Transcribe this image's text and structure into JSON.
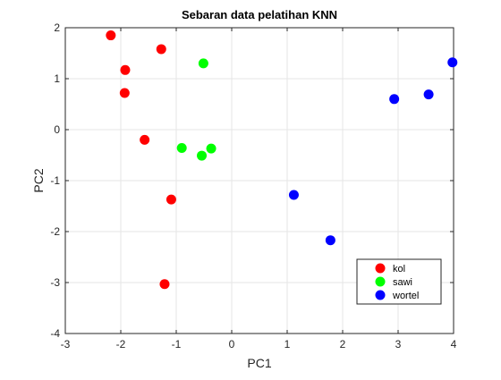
{
  "chart_data": {
    "type": "scatter",
    "title": "Sebaran data pelatihan KNN",
    "xlabel": "PC1",
    "ylabel": "PC2",
    "xlim": [
      -3,
      4
    ],
    "ylim": [
      -4,
      2
    ],
    "xticks": [
      -3,
      -2,
      -1,
      0,
      1,
      2,
      3,
      4
    ],
    "yticks": [
      -4,
      -3,
      -2,
      -1,
      0,
      1,
      2
    ],
    "grid": true,
    "legend_position": "bottom-right",
    "series": [
      {
        "name": "kol",
        "color": "#ff0000",
        "points": [
          [
            -2.18,
            1.85
          ],
          [
            -1.27,
            1.58
          ],
          [
            -1.92,
            1.17
          ],
          [
            -1.93,
            0.72
          ],
          [
            -1.57,
            -0.2
          ],
          [
            -1.09,
            -1.37
          ],
          [
            -1.21,
            -3.03
          ]
        ]
      },
      {
        "name": "sawi",
        "color": "#00ff00",
        "points": [
          [
            -0.51,
            1.3
          ],
          [
            -0.9,
            -0.36
          ],
          [
            -0.37,
            -0.37
          ],
          [
            -0.54,
            -0.51
          ]
        ]
      },
      {
        "name": "wortel",
        "color": "#0000ff",
        "points": [
          [
            3.98,
            1.32
          ],
          [
            3.55,
            0.69
          ],
          [
            2.93,
            0.6
          ],
          [
            1.12,
            -1.28
          ],
          [
            1.78,
            -2.17
          ]
        ]
      }
    ]
  }
}
